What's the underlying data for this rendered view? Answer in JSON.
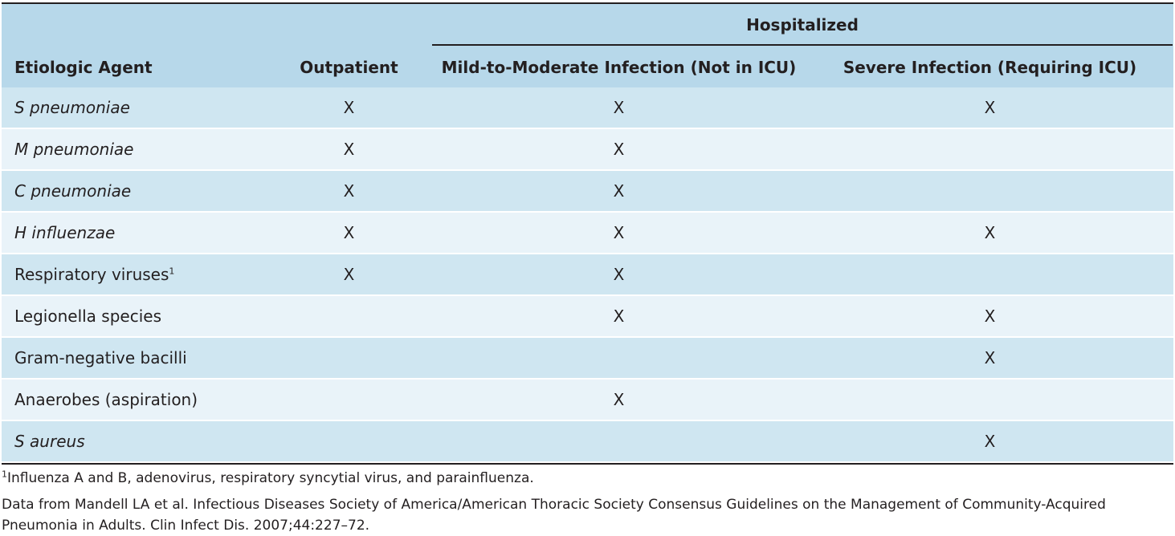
{
  "table": {
    "hospitalized_label": "Hospitalized",
    "headers": {
      "agent": "Etiologic Agent",
      "outpatient": "Outpatient",
      "mild": "Mild-to-Moderate Infection (Not in ICU)",
      "severe": "Severe Infection (Requiring ICU)"
    },
    "rows": [
      {
        "agent": "S pneumoniae",
        "italic": true,
        "outpatient": "X",
        "mild": "X",
        "severe": "X"
      },
      {
        "agent": "M pneumoniae",
        "italic": true,
        "outpatient": "X",
        "mild": "X",
        "severe": ""
      },
      {
        "agent": "C pneumoniae",
        "italic": true,
        "outpatient": "X",
        "mild": "X",
        "severe": ""
      },
      {
        "agent": "H influenzae",
        "italic": true,
        "outpatient": "X",
        "mild": "X",
        "severe": "X"
      },
      {
        "agent": "Respiratory viruses",
        "sup": "1",
        "italic": false,
        "outpatient": "X",
        "mild": "X",
        "severe": ""
      },
      {
        "agent": "Legionella species",
        "italic": false,
        "outpatient": "",
        "mild": "X",
        "severe": "X"
      },
      {
        "agent": "Gram-negative bacilli",
        "italic": false,
        "outpatient": "",
        "mild": "",
        "severe": "X"
      },
      {
        "agent": "Anaerobes (aspiration)",
        "italic": false,
        "outpatient": "",
        "mild": "X",
        "severe": ""
      },
      {
        "agent": "S aureus",
        "italic": true,
        "outpatient": "",
        "mild": "",
        "severe": "X"
      }
    ]
  },
  "footnote": {
    "marker": "1",
    "text": "Influenza A and B, adenovirus, respiratory syncytial virus, and parainfluenza."
  },
  "source": "Data from Mandell LA et al. Infectious Diseases Society of America/American Thoracic Society Consensus Guidelines on the Management of Community-Acquired Pneumonia in Adults. Clin Infect Dis. 2007;44:227–72.",
  "colors": {
    "header_bg": "#b7d8ea",
    "row_dark": "#cfe6f1",
    "row_light": "#e9f3f9",
    "text": "#231f20"
  }
}
